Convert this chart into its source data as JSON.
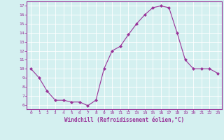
{
  "x": [
    0,
    1,
    2,
    3,
    4,
    5,
    6,
    7,
    8,
    9,
    10,
    11,
    12,
    13,
    14,
    15,
    16,
    17,
    18,
    19,
    20,
    21,
    22,
    23
  ],
  "y": [
    10,
    9,
    7.5,
    6.5,
    6.5,
    6.3,
    6.3,
    5.9,
    6.5,
    10,
    12,
    12.5,
    13.8,
    15,
    16,
    16.8,
    17,
    16.8,
    14,
    11,
    10,
    10,
    10,
    9.5
  ],
  "line_color": "#993399",
  "marker": "D",
  "marker_size": 2,
  "bg_color": "#d4f0f0",
  "grid_color": "#ffffff",
  "xlabel": "Windchill (Refroidissement éolien,°C)",
  "xlabel_color": "#993399",
  "tick_color": "#993399",
  "spine_color": "#993399",
  "ylim": [
    5.5,
    17.5
  ],
  "yticks": [
    6,
    7,
    8,
    9,
    10,
    11,
    12,
    13,
    14,
    15,
    16,
    17
  ],
  "xlim": [
    -0.5,
    23.5
  ],
  "xticks": [
    0,
    1,
    2,
    3,
    4,
    5,
    6,
    7,
    8,
    9,
    10,
    11,
    12,
    13,
    14,
    15,
    16,
    17,
    18,
    19,
    20,
    21,
    22,
    23
  ]
}
